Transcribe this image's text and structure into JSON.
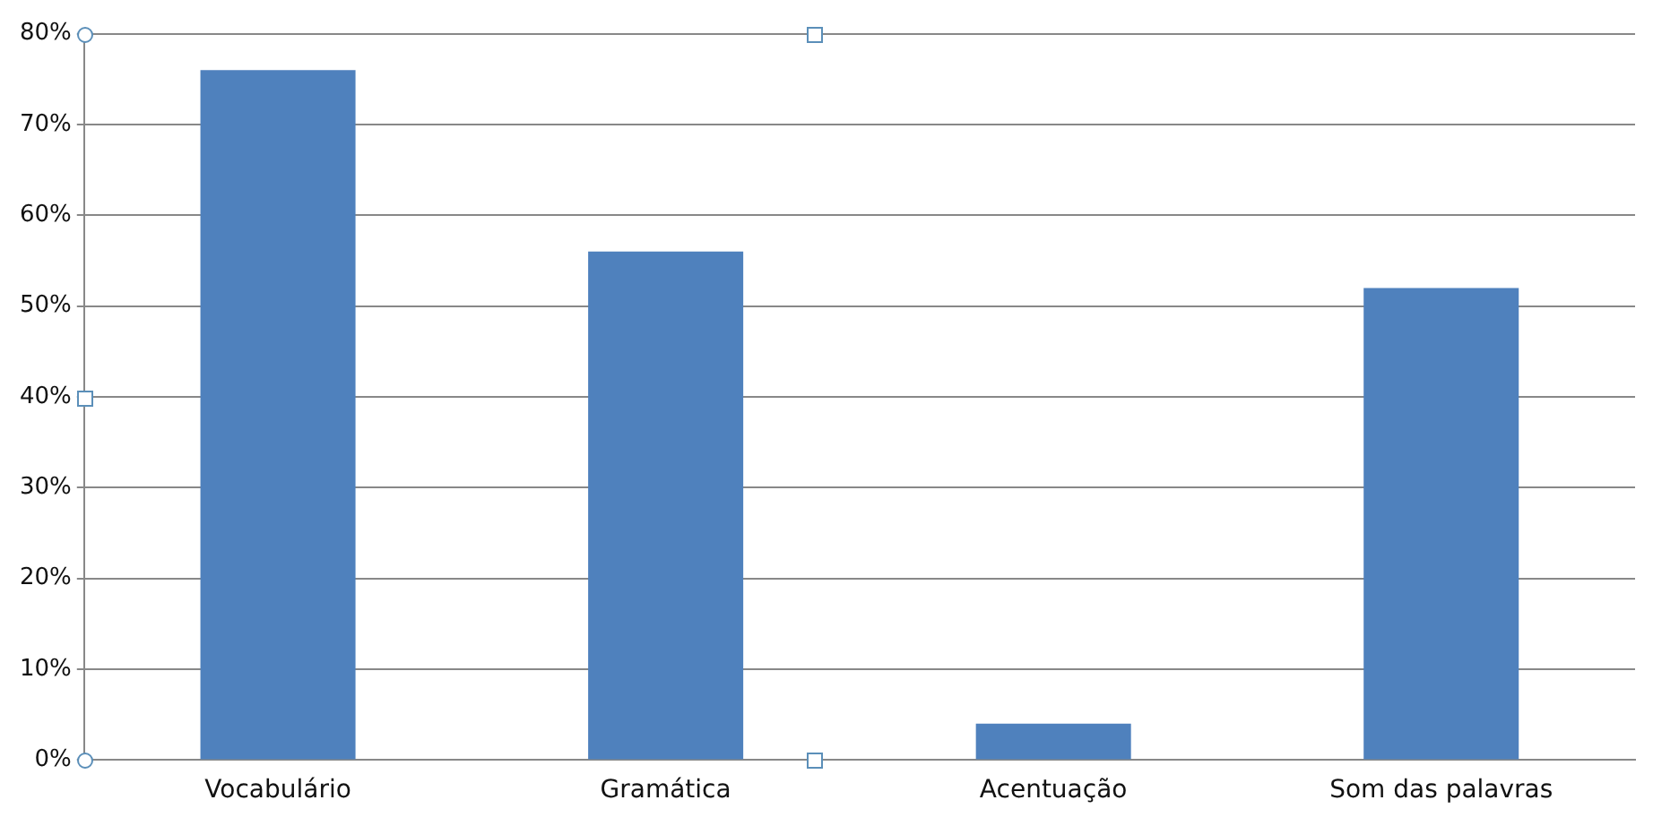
{
  "chart_data": {
    "type": "bar",
    "categories": [
      "Vocabulário",
      "Gramática",
      "Acentuação",
      "Som das palavras"
    ],
    "values": [
      76,
      56,
      4,
      52
    ],
    "color": "#4f81bd",
    "ylim": [
      0,
      80
    ],
    "yticks": [
      {
        "value": 0,
        "label": "0%"
      },
      {
        "value": 10,
        "label": "10%"
      },
      {
        "value": 20,
        "label": "20%"
      },
      {
        "value": 30,
        "label": "30%"
      },
      {
        "value": 40,
        "label": "40%"
      },
      {
        "value": 50,
        "label": "50%"
      },
      {
        "value": 60,
        "label": "60%"
      },
      {
        "value": 70,
        "label": "70%"
      },
      {
        "value": 80,
        "label": "80%"
      }
    ],
    "grid": "y",
    "legend": false
  }
}
